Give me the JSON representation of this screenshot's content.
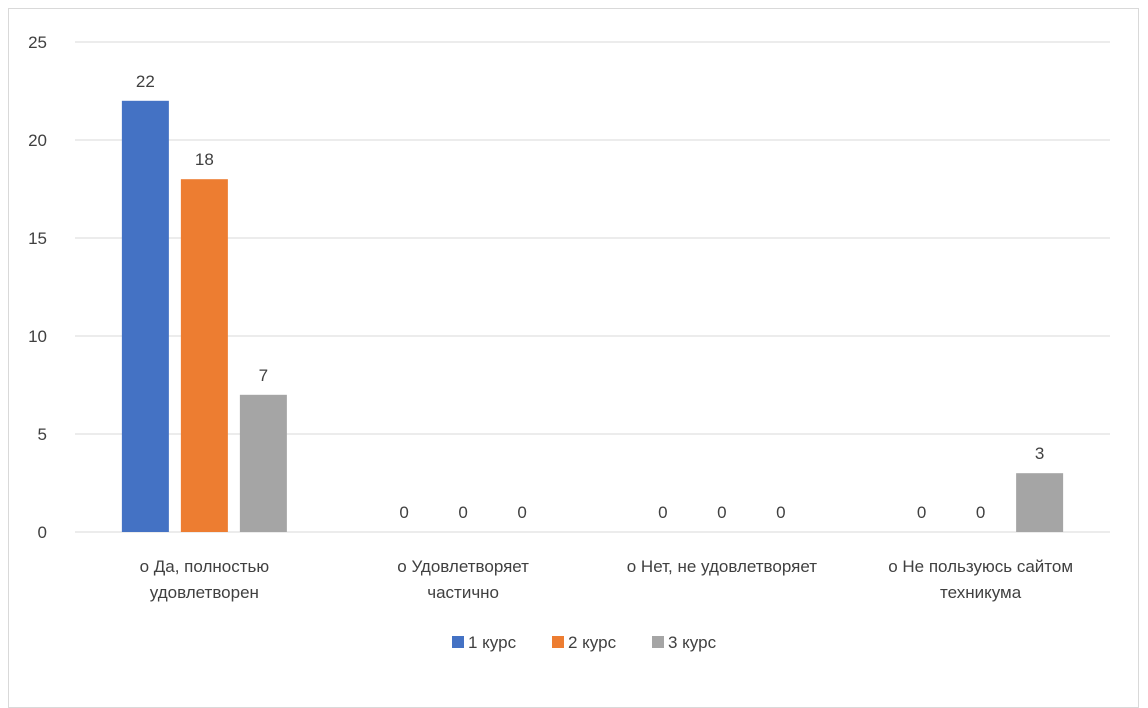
{
  "chart_data": {
    "type": "bar",
    "categories": [
      [
        "o  Да, полностью",
        "удовлетворен"
      ],
      [
        "o  Удовлетворяет",
        "частично"
      ],
      [
        "o  Нет, не удовлетворяет"
      ],
      [
        "o  Не пользуюсь сайтом",
        "техникума"
      ]
    ],
    "series": [
      {
        "name": "1 курс",
        "color": "#4472C4",
        "values": [
          22,
          0,
          0,
          0
        ]
      },
      {
        "name": "2 курс",
        "color": "#ED7D31",
        "values": [
          18,
          0,
          0,
          0
        ]
      },
      {
        "name": "3 курс",
        "color": "#A5A5A5",
        "values": [
          7,
          0,
          0,
          3
        ]
      }
    ],
    "ylim": [
      0,
      25
    ],
    "yticks": [
      0,
      5,
      10,
      15,
      20,
      25
    ],
    "grid": true,
    "legend_position": "bottom-center",
    "title": "",
    "xlabel": "",
    "ylabel": ""
  }
}
